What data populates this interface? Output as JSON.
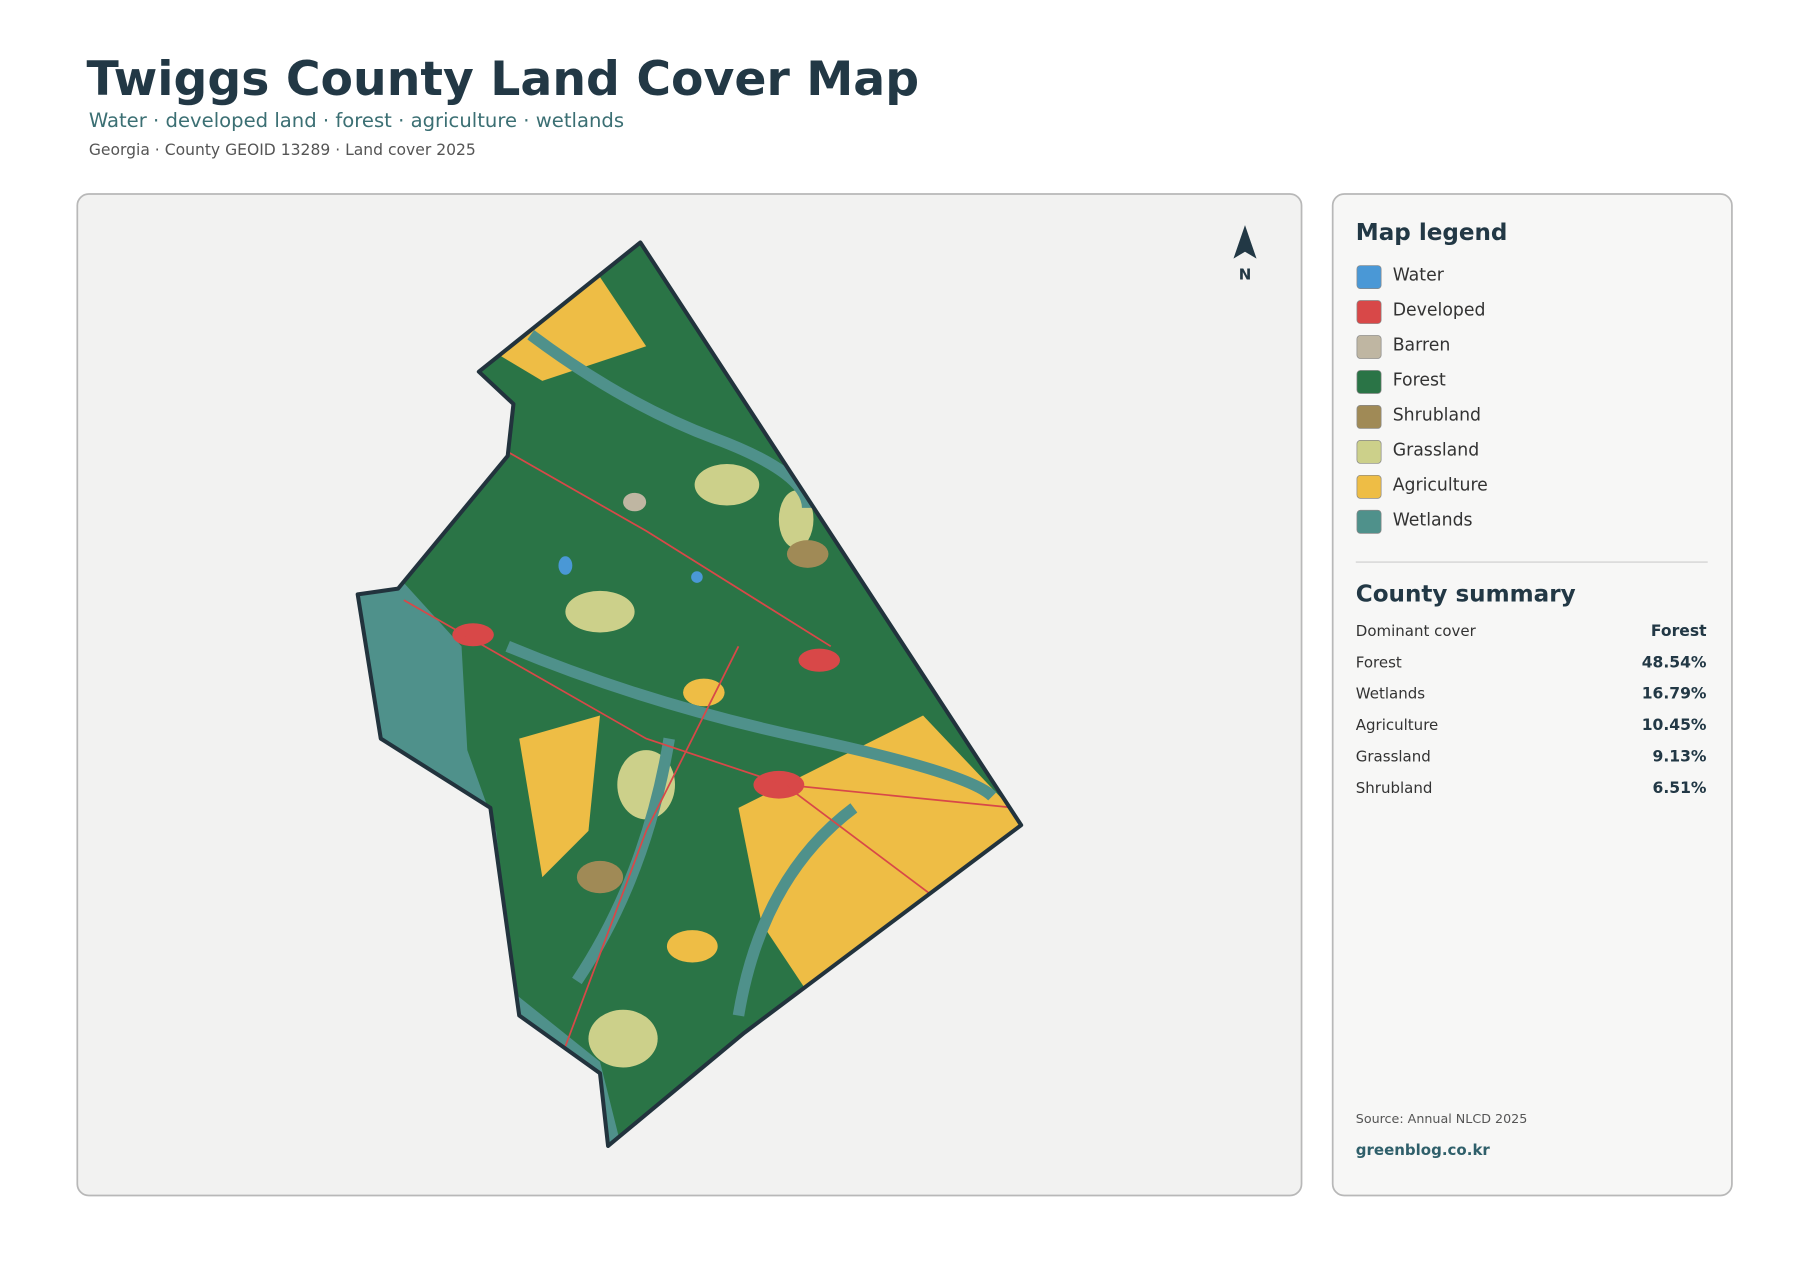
{
  "header": {
    "title": "Twiggs County Land Cover Map",
    "subtitle": "Water · developed land · forest · agriculture · wetlands",
    "meta": "Georgia · County GEOID 13289 · Land cover 2025"
  },
  "map": {
    "north": "N"
  },
  "legend": {
    "title": "Map legend",
    "items": [
      {
        "label": "Water",
        "color": "#4a98d6"
      },
      {
        "label": "Developed",
        "color": "#d84848"
      },
      {
        "label": "Barren",
        "color": "#bfb6a2"
      },
      {
        "label": "Forest",
        "color": "#2a7446"
      },
      {
        "label": "Shrubland",
        "color": "#a08a56"
      },
      {
        "label": "Grassland",
        "color": "#ccd08a"
      },
      {
        "label": "Agriculture",
        "color": "#eebd45"
      },
      {
        "label": "Wetlands",
        "color": "#4f918b"
      }
    ]
  },
  "summary": {
    "title": "County summary",
    "rows": [
      [
        "Dominant cover",
        "Forest"
      ],
      [
        "Forest",
        "48.54%"
      ],
      [
        "Wetlands",
        "16.79%"
      ],
      [
        "Agriculture",
        "10.45%"
      ],
      [
        "Grassland",
        "9.13%"
      ],
      [
        "Shrubland",
        "6.51%"
      ]
    ]
  },
  "footer": {
    "source": "Source: Annual NLCD 2025",
    "site": "greenblog.co.kr"
  }
}
